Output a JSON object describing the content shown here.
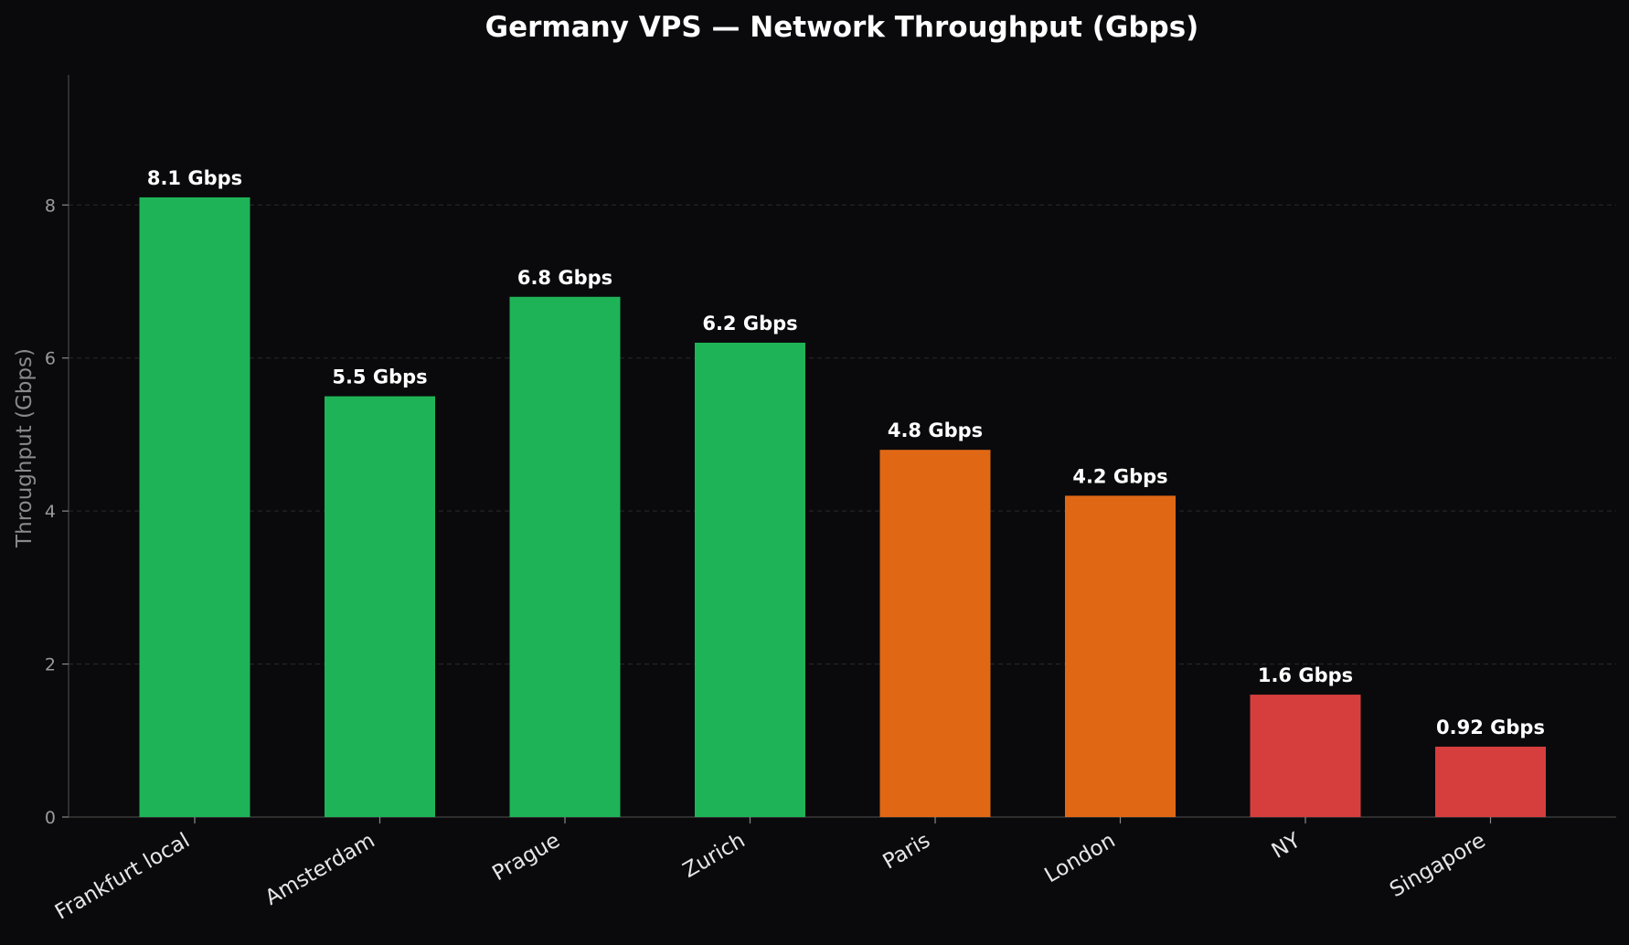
{
  "chart_data": {
    "type": "bar",
    "title": "Germany VPS — Network Throughput (Gbps)",
    "xlabel": "",
    "ylabel": "Throughput (Gbps)",
    "ylim": [
      0,
      9.7
    ],
    "yticks": [
      "0",
      "2",
      "4",
      "6",
      "8"
    ],
    "grid": true,
    "categories": [
      "Frankfurt local",
      "Amsterdam",
      "Prague",
      "Zurich",
      "Paris",
      "London",
      "NY",
      "Singapore"
    ],
    "values": [
      8.1,
      5.5,
      6.8,
      6.2,
      4.8,
      4.2,
      1.6,
      0.92
    ],
    "data_labels": [
      "8.1 Gbps",
      "5.5 Gbps",
      "6.8 Gbps",
      "6.2 Gbps",
      "4.8 Gbps",
      "4.2 Gbps",
      "1.6 Gbps",
      "0.92 Gbps"
    ],
    "bar_colors": [
      "#1fb358",
      "#1fb358",
      "#1fb358",
      "#1fb358",
      "#e06815",
      "#e06815",
      "#d63e3e",
      "#d63e3e"
    ],
    "colors": {
      "background": "#0a0a0c",
      "text": "#ffffff",
      "tick_text": "#9b9b9b",
      "axis": "#3a3a3a",
      "grid": "#2a2a2a"
    }
  }
}
